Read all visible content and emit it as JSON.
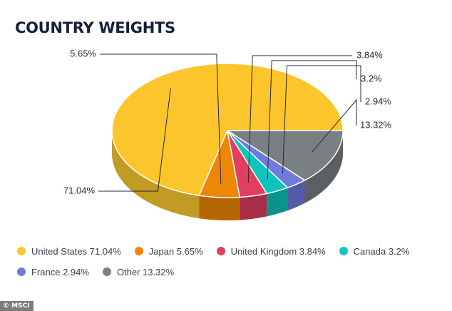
{
  "title": "COUNTRY WEIGHTS",
  "credit": "© MSCI",
  "chart_data": {
    "type": "pie",
    "title": "COUNTRY WEIGHTS",
    "style": "3d",
    "start_angle_deg": 0,
    "direction": "counterclockwise",
    "slices": [
      {
        "label": "United States",
        "value": 71.04,
        "value_label": "71.04%",
        "legend": "United States 71.04%",
        "color": "#FDC52C",
        "side": "#C29B24"
      },
      {
        "label": "Japan",
        "value": 5.65,
        "value_label": "5.65%",
        "legend": "Japan 5.65%",
        "color": "#EE8707",
        "side": "#B46605"
      },
      {
        "label": "United Kingdom",
        "value": 3.84,
        "value_label": "3.84%",
        "legend": "United Kingdom 3.84%",
        "color": "#E33E60",
        "side": "#A82E48"
      },
      {
        "label": "Canada",
        "value": 3.2,
        "value_label": "3.2%",
        "legend": "Canada 3.2%",
        "color": "#0EC5BE",
        "side": "#0A928C"
      },
      {
        "label": "France",
        "value": 2.94,
        "value_label": "2.94%",
        "legend": "France 2.94%",
        "color": "#6E7BDB",
        "side": "#525CA6"
      },
      {
        "label": "Other",
        "value": 13.32,
        "value_label": "13.32%",
        "legend": "Other 13.32%",
        "color": "#7A7F81",
        "side": "#5B5F61"
      }
    ]
  }
}
